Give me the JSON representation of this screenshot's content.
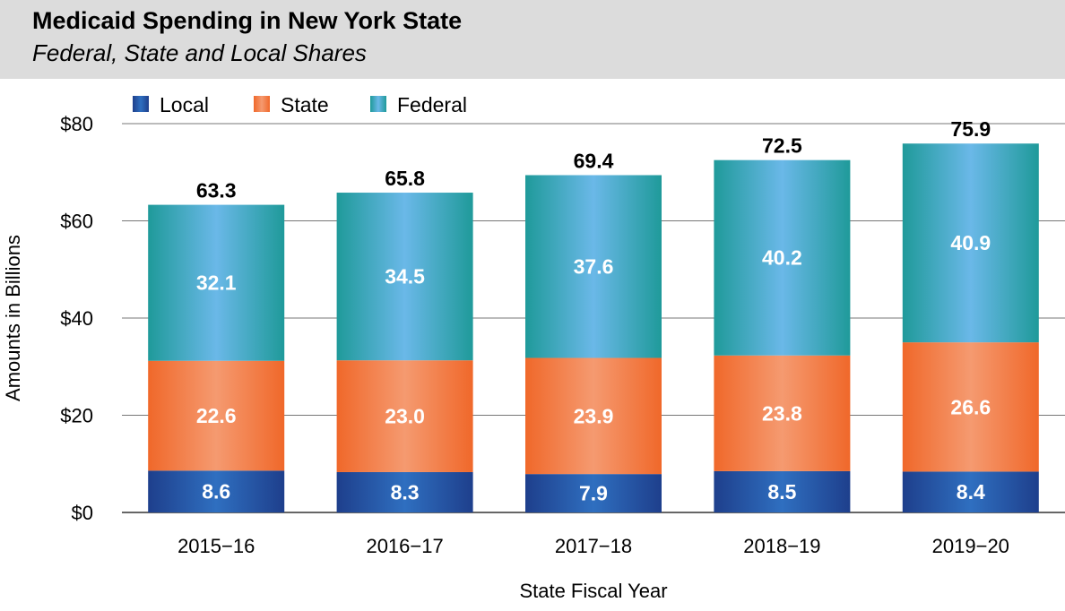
{
  "header": {
    "title": "Medicaid Spending in New York State",
    "subtitle": "Federal, State and Local Shares"
  },
  "chart_data": {
    "type": "bar",
    "stacked": true,
    "categories": [
      "2015−16",
      "2016−17",
      "2017−18",
      "2018−19",
      "2019−20"
    ],
    "series": [
      {
        "name": "Local",
        "values": [
          8.6,
          8.3,
          7.9,
          8.5,
          8.4
        ],
        "color": "#1a4f9c",
        "label_color": "#ffffff"
      },
      {
        "name": "State",
        "values": [
          22.6,
          23.0,
          23.9,
          23.8,
          26.6
        ],
        "color": "#f26b2d",
        "label_color": "#ffffff"
      },
      {
        "name": "Federal",
        "values": [
          32.1,
          34.5,
          37.6,
          40.2,
          40.9
        ],
        "color": "#35a4c8",
        "label_color": "#ffffff"
      }
    ],
    "totals": [
      63.3,
      65.8,
      69.4,
      72.5,
      75.9
    ],
    "ylim": [
      0,
      80
    ],
    "yticks": [
      0,
      20,
      40,
      60,
      80
    ],
    "ytick_labels": [
      "$0",
      "$20",
      "$40",
      "$60",
      "$80"
    ],
    "xlabel": "State Fiscal Year",
    "ylabel": "Amounts in Billions",
    "grid": true,
    "legend_position": "top-left"
  }
}
